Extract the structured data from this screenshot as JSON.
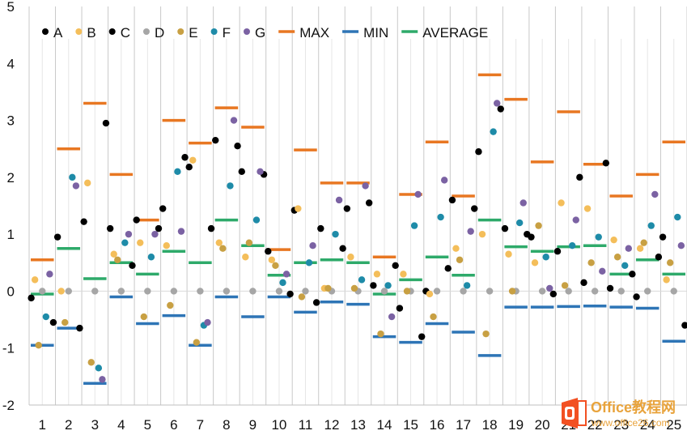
{
  "chart_data": {
    "type": "scatter",
    "title": "",
    "xlabel": "",
    "ylabel": "",
    "ylim": [
      -2,
      5
    ],
    "yticks": [
      -2,
      -1,
      0,
      1,
      2,
      3,
      4,
      5
    ],
    "categories": [
      "1",
      "2",
      "3",
      "4",
      "5",
      "6",
      "7",
      "8",
      "9",
      "10",
      "11",
      "12",
      "13",
      "14",
      "15",
      "16",
      "17",
      "18",
      "19",
      "20",
      "21",
      "22",
      "23",
      "24",
      "25"
    ],
    "legend_position": "top",
    "series": [
      {
        "name": "A",
        "kind": "points",
        "color": "#000000",
        "values": [
          -0.12,
          0.95,
          1.22,
          1.1,
          1.25,
          1.45,
          2.18,
          2.65,
          2.1,
          0.7,
          1.42,
          1.1,
          1.45,
          0.1,
          -0.3,
          0.0,
          1.6,
          2.45,
          1.1,
          0.95,
          0.7,
          0.15,
          0.05,
          -0.1,
          0.95
        ]
      },
      {
        "name": "B",
        "kind": "points",
        "color": "#F4BE5A",
        "values": [
          0.2,
          0.0,
          1.9,
          0.65,
          0.85,
          0.8,
          2.3,
          0.85,
          0.6,
          0.55,
          1.45,
          0.05,
          0.6,
          0.3,
          0.3,
          -0.05,
          0.75,
          1.0,
          0.65,
          0.5,
          1.55,
          1.45,
          0.9,
          0.75,
          0.2
        ]
      },
      {
        "name": "C",
        "kind": "points",
        "color": "#000000",
        "values": [
          -0.55,
          -0.65,
          2.95,
          0.45,
          1.1,
          2.35,
          1.1,
          2.55,
          2.05,
          -0.05,
          -0.2,
          0.75,
          1.55,
          0.45,
          -0.8,
          0.4,
          1.45,
          3.2,
          1.0,
          -0.05,
          2.0,
          2.25,
          0.3,
          0.6,
          -0.6
        ]
      },
      {
        "name": "D",
        "kind": "points",
        "color": "#A6A6A6",
        "values": [
          0,
          0,
          0,
          0,
          0,
          0,
          0,
          0,
          0,
          0,
          0,
          0,
          0,
          0,
          0,
          0,
          0,
          0,
          0,
          0,
          0,
          0,
          0,
          0,
          0
        ]
      },
      {
        "name": "E",
        "kind": "points",
        "color": "#C8A043",
        "values": [
          -0.95,
          -0.55,
          -1.25,
          0.55,
          -0.45,
          -0.25,
          -0.9,
          0.75,
          0.85,
          0.45,
          -0.1,
          0.05,
          0.05,
          -0.75,
          0.0,
          -0.45,
          0.55,
          -0.75,
          0.0,
          1.15,
          0.1,
          0.5,
          0.6,
          0.85,
          0.5
        ]
      },
      {
        "name": "F",
        "kind": "points",
        "color": "#1E8BA8",
        "values": [
          -0.45,
          2.0,
          -1.35,
          0.85,
          0.6,
          2.1,
          -0.6,
          1.85,
          1.25,
          0.15,
          0.5,
          1.0,
          0.2,
          0.1,
          1.15,
          1.3,
          0.1,
          2.8,
          1.2,
          0.6,
          0.8,
          0.95,
          0.45,
          1.15,
          1.3
        ]
      },
      {
        "name": "G",
        "kind": "points",
        "color": "#7B62A3",
        "values": [
          0.3,
          1.85,
          -1.55,
          1.0,
          1.0,
          1.05,
          -0.55,
          3.0,
          2.1,
          0.3,
          0.8,
          1.6,
          1.85,
          -0.45,
          1.7,
          1.95,
          1.05,
          3.3,
          1.55,
          0.05,
          1.25,
          0.35,
          0.75,
          1.7,
          0.8
        ]
      },
      {
        "name": "MAX",
        "kind": "bar-marker",
        "color": "#E87722",
        "values": [
          0.55,
          2.5,
          3.3,
          2.05,
          1.25,
          3.0,
          2.6,
          3.22,
          2.88,
          0.73,
          2.48,
          1.9,
          1.9,
          0.6,
          1.7,
          2.62,
          1.67,
          3.8,
          3.37,
          2.27,
          3.15,
          2.23,
          1.67,
          2.05,
          2.62
        ]
      },
      {
        "name": "MIN",
        "kind": "bar-marker",
        "color": "#2E75B6",
        "values": [
          -0.95,
          -0.65,
          -1.62,
          -0.1,
          -0.57,
          -0.43,
          -0.95,
          -0.1,
          -0.45,
          -0.1,
          -0.37,
          -0.19,
          -0.23,
          -0.8,
          -0.9,
          -0.57,
          -0.72,
          -1.13,
          -0.28,
          -0.28,
          -0.27,
          -0.26,
          -0.28,
          -0.3,
          -0.88
        ]
      },
      {
        "name": "AVERAGE",
        "kind": "bar-marker",
        "color": "#2EAA6A",
        "values": [
          -0.05,
          0.75,
          0.22,
          0.5,
          0.3,
          0.7,
          0.5,
          1.25,
          0.8,
          0.28,
          0.5,
          0.55,
          0.5,
          -0.05,
          0.2,
          0.6,
          0.28,
          1.25,
          0.78,
          0.7,
          0.78,
          0.8,
          0.3,
          0.55,
          0.3
        ]
      }
    ]
  },
  "watermark": {
    "brand": "Office教程网",
    "url": "www.office26.com",
    "logo_colors": [
      "#F25022",
      "#FFB900",
      "#E8A33C"
    ]
  }
}
